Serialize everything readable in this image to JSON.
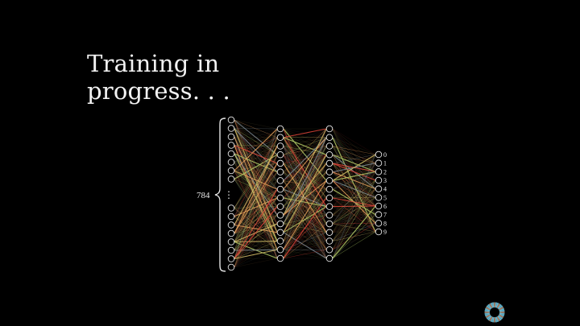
{
  "title": {
    "line1": "Training in",
    "line2": "progress. . ."
  },
  "network": {
    "input_count_label": "784",
    "input_ellipsis": "⋮",
    "layer_neuron_counts_shown": [
      16,
      16,
      16,
      10
    ],
    "output_labels": [
      "0",
      "1",
      "2",
      "3",
      "4",
      "5",
      "6",
      "7",
      "8",
      "9"
    ]
  },
  "colors": {
    "background": "#000000",
    "neuron_stroke": "#e6e6e6",
    "edge_palette": [
      "#e0453a",
      "#e8a05a",
      "#d9c66b",
      "#b8d46a",
      "#7f8c95"
    ],
    "logo_outer": "#6fb3c8",
    "logo_inner": "#c86a3a"
  },
  "icons": {
    "corner_logo": "pi-creature-eye-icon"
  }
}
